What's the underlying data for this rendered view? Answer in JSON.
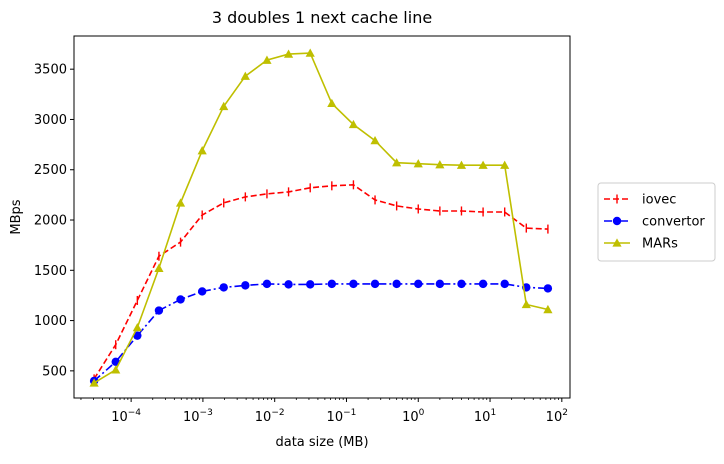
{
  "chart_data": {
    "type": "line",
    "title": "3 doubles 1 next cache line",
    "xlabel": "data size (MB)",
    "ylabel": "MBps",
    "xscale": "log",
    "xlim": [
      1.6e-05,
      130
    ],
    "ylim": [
      230,
      3830
    ],
    "grid": false,
    "legend_placement": "outside right, center",
    "x_ticks": [
      {
        "value": 0.0001,
        "base": "10",
        "exp": "−4"
      },
      {
        "value": 0.001,
        "base": "10",
        "exp": "−3"
      },
      {
        "value": 0.01,
        "base": "10",
        "exp": "−2"
      },
      {
        "value": 0.1,
        "base": "10",
        "exp": "−1"
      },
      {
        "value": 1,
        "base": "10",
        "exp": "0"
      },
      {
        "value": 10,
        "base": "10",
        "exp": "1"
      },
      {
        "value": 100,
        "base": "10",
        "exp": "2"
      }
    ],
    "y_ticks": [
      500,
      1000,
      1500,
      2000,
      2500,
      3000,
      3500
    ],
    "x": [
      3.05e-05,
      6.1e-05,
      0.000122,
      0.000244,
      0.000488,
      0.000977,
      0.00195,
      0.0039,
      0.0078,
      0.0156,
      0.03125,
      0.0625,
      0.125,
      0.25,
      0.5,
      1,
      2,
      4,
      8,
      16,
      32,
      64
    ],
    "series": [
      {
        "name": "iovec",
        "color": "#ff0000",
        "marker": "tick",
        "linestyle": "dashed",
        "values": [
          420,
          760,
          1200,
          1640,
          1780,
          2050,
          2170,
          2230,
          2260,
          2280,
          2320,
          2340,
          2350,
          2200,
          2140,
          2110,
          2090,
          2090,
          2080,
          2080,
          1920,
          1910
        ]
      },
      {
        "name": "convertor",
        "color": "#0000ff",
        "marker": "circle",
        "linestyle": "dashdot",
        "values": [
          400,
          590,
          850,
          1100,
          1210,
          1290,
          1330,
          1350,
          1365,
          1360,
          1360,
          1365,
          1365,
          1365,
          1365,
          1365,
          1365,
          1365,
          1365,
          1365,
          1330,
          1320
        ]
      },
      {
        "name": "MARs",
        "color": "#bfbf00",
        "marker": "triangle",
        "linestyle": "solid",
        "values": [
          380,
          510,
          930,
          1520,
          2170,
          2690,
          3130,
          3430,
          3590,
          3650,
          3660,
          3160,
          2950,
          2790,
          2570,
          2560,
          2550,
          2545,
          2545,
          2545,
          1160,
          1110
        ]
      }
    ]
  }
}
